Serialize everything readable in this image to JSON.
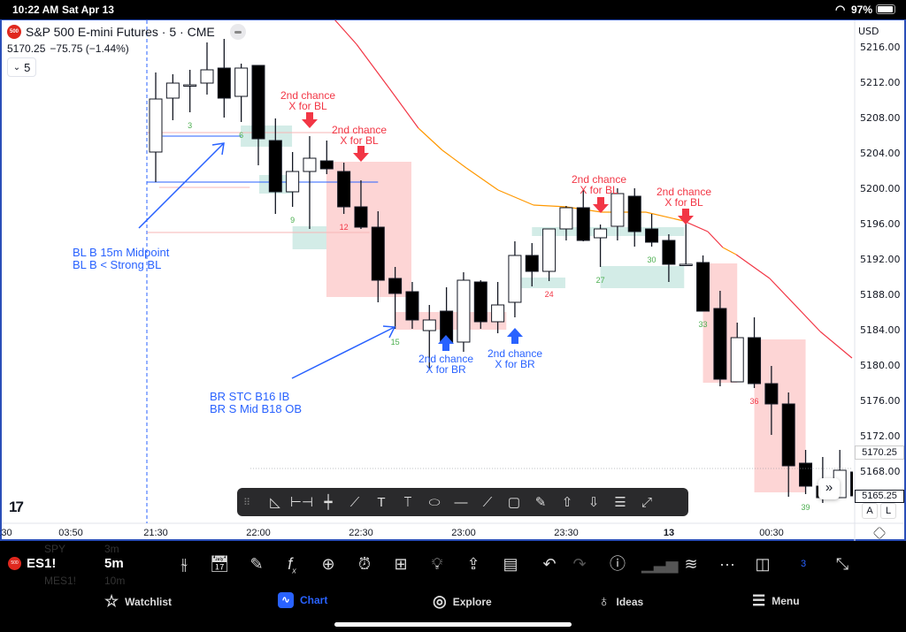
{
  "status_bar": {
    "time": "10:22 AM",
    "date": "Sat Apr 13",
    "battery": "97%"
  },
  "chart_header": {
    "symbol_badge": "500",
    "title": "S&P 500 E-mini Futures · 5 · CME",
    "last_price": "5170.25",
    "change": "−75.75 (−1.44%)",
    "indicator_toggle": "5"
  },
  "price_axis": {
    "currency": "USD",
    "ticks": [
      "5216.00",
      "5212.00",
      "5208.00",
      "5204.00",
      "5200.00",
      "5196.00",
      "5192.00",
      "5188.00",
      "5184.00",
      "5180.00",
      "5176.00",
      "5172.00",
      "5168.00"
    ],
    "tag_upper": "5170.25",
    "tag_lower": "5165.25"
  },
  "time_axis": {
    "ticks": [
      ":30",
      "03:50",
      "21:30",
      "22:00",
      "22:30",
      "23:00",
      "23:30",
      "13",
      "00:30"
    ]
  },
  "chart_data": {
    "type": "candlestick",
    "title": "S&P 500 E-mini Futures · 5 · CME",
    "ylim": [
      5164,
      5218
    ],
    "candles_ohlc": [
      [
        5204.2,
        5213.2,
        5200.8,
        5210.2
      ],
      [
        5210.3,
        5213.0,
        5207.8,
        5212.0
      ],
      [
        5211.8,
        5213.5,
        5208.7,
        5211.8
      ],
      [
        5212.0,
        5216.6,
        5210.7,
        5213.5
      ],
      [
        5213.7,
        5217.0,
        5208.1,
        5210.3
      ],
      [
        5210.5,
        5214.2,
        5207.6,
        5213.7
      ],
      [
        5214.0,
        5214.0,
        5202.7,
        5205.7
      ],
      [
        5205.5,
        5208.0,
        5197.2,
        5199.7
      ],
      [
        5199.7,
        5204.2,
        5198.0,
        5202.0
      ],
      [
        5202.0,
        5206.0,
        5195.5,
        5203.5
      ],
      [
        5203.2,
        5205.5,
        5201.7,
        5202.3
      ],
      [
        5202.0,
        5203.0,
        5197.2,
        5198.0
      ],
      [
        5198.0,
        5201.0,
        5195.5,
        5195.7
      ],
      [
        5195.7,
        5197.5,
        5187.2,
        5189.7
      ],
      [
        5189.9,
        5191.2,
        5184.2,
        5188.2
      ],
      [
        5188.4,
        5189.5,
        5184.2,
        5185.2
      ],
      [
        5184.0,
        5186.9,
        5179.7,
        5185.2
      ],
      [
        5186.2,
        5188.9,
        5181.7,
        5182.6
      ],
      [
        5182.7,
        5190.6,
        5181.6,
        5189.7
      ],
      [
        5189.5,
        5189.7,
        5184.2,
        5185.0
      ],
      [
        5185.0,
        5189.5,
        5183.7,
        5186.9
      ],
      [
        5187.2,
        5194.1,
        5185.5,
        5192.5
      ],
      [
        5192.5,
        5193.9,
        5189.0,
        5190.7
      ],
      [
        5190.7,
        5195.5,
        5189.6,
        5195.5
      ],
      [
        5195.5,
        5198.1,
        5194.2,
        5197.9
      ],
      [
        5197.9,
        5199.9,
        5194.1,
        5194.2
      ],
      [
        5194.5,
        5196.0,
        5191.2,
        5195.5
      ],
      [
        5195.8,
        5200.1,
        5194.2,
        5199.5
      ],
      [
        5199.2,
        5200.1,
        5193.5,
        5195.2
      ],
      [
        5195.5,
        5197.2,
        5193.5,
        5194.0
      ],
      [
        5194.2,
        5194.9,
        5189.5,
        5191.5
      ],
      [
        5191.5,
        5196.1,
        5191.4,
        5191.5
      ],
      [
        5191.7,
        5192.5,
        5186.2,
        5186.2
      ],
      [
        5186.5,
        5188.5,
        5177.7,
        5178.5
      ],
      [
        5178.2,
        5184.9,
        5178.2,
        5183.2
      ],
      [
        5183.2,
        5185.5,
        5177.5,
        5178.0
      ],
      [
        5178.0,
        5180.0,
        5172.2,
        5175.7
      ],
      [
        5175.7,
        5177.0,
        5165.2,
        5168.7
      ],
      [
        5169.0,
        5170.5,
        5165.5,
        5166.4
      ],
      [
        5166.4,
        5169.7,
        5164.5,
        5165.1
      ],
      [
        5165.1,
        5170.5,
        5165.1,
        5168.2
      ],
      [
        5168.0,
        5168.2,
        5164.8,
        5165.3
      ]
    ],
    "moving_average": [
      {
        "bar": 11.45,
        "price": 5219.2,
        "color": "#f23645"
      },
      {
        "bar": 12.74,
        "price": 5216.4,
        "color": "#f23645"
      },
      {
        "bar": 14.66,
        "price": 5211.4,
        "color": "#f23645"
      },
      {
        "bar": 16.36,
        "price": 5206.9,
        "color": "#ff9800"
      },
      {
        "bar": 17.76,
        "price": 5204.4,
        "color": "#ff9800"
      },
      {
        "bar": 19.16,
        "price": 5202.4,
        "color": "#ff9800"
      },
      {
        "bar": 21.02,
        "price": 5199.9,
        "color": "#ff9800"
      },
      {
        "bar": 23.09,
        "price": 5198.2,
        "color": "#ff9800"
      },
      {
        "bar": 25.0,
        "price": 5198.0,
        "color": "#ff9800"
      },
      {
        "bar": 27.07,
        "price": 5197.4,
        "color": "#ff9800"
      },
      {
        "bar": 29.66,
        "price": 5197.4,
        "color": "#ff9800"
      },
      {
        "bar": 31.88,
        "price": 5196.4,
        "color": "#f23645"
      },
      {
        "bar": 33.28,
        "price": 5195.2,
        "color": "#f23645"
      },
      {
        "bar": 34.16,
        "price": 5193.4,
        "color": "#ff9800"
      },
      {
        "bar": 34.94,
        "price": 5192.6,
        "color": "#f23645"
      },
      {
        "bar": 36.9,
        "price": 5189.9,
        "color": "#f23645"
      },
      {
        "bar": 39.85,
        "price": 5183.9,
        "color": "#f23645"
      },
      {
        "bar": 41.71,
        "price": 5180.9,
        "color": "#ff9800"
      }
    ],
    "zones": [
      {
        "kind": "bull",
        "bar_from": 5.97,
        "bar_to": 8.97,
        "price_top": 5207.2,
        "price_bottom": 5204.8
      },
      {
        "kind": "bull",
        "bar_from": 7.05,
        "bar_to": 8.97,
        "price_top": 5201.6,
        "price_bottom": 5199.5
      },
      {
        "kind": "bull",
        "bar_from": 9.0,
        "bar_to": 11.0,
        "price_top": 5195.8,
        "price_bottom": 5193.2
      },
      {
        "kind": "bull",
        "bar_from": 22.4,
        "bar_to": 24.95,
        "price_top": 5190.0,
        "price_bottom": 5188.8
      },
      {
        "kind": "bull",
        "bar_from": 23.0,
        "bar_to": 31.9,
        "price_top": 5195.7,
        "price_bottom": 5194.7
      },
      {
        "kind": "bull",
        "bar_from": 27.0,
        "bar_to": 31.9,
        "price_top": 5191.3,
        "price_bottom": 5188.8
      },
      {
        "kind": "bear",
        "bar_from": 10.98,
        "bar_to": 15.95,
        "price_top": 5203.1,
        "price_bottom": 5187.8
      },
      {
        "kind": "bear",
        "bar_from": 15.0,
        "bar_to": 21.5,
        "price_top": 5186.1,
        "price_bottom": 5184.1
      },
      {
        "kind": "bear",
        "bar_from": 33.0,
        "bar_to": 35.0,
        "price_top": 5191.6,
        "price_bottom": 5178.1
      },
      {
        "kind": "bear",
        "bar_from": 36.0,
        "bar_to": 39.0,
        "price_top": 5183.0,
        "price_bottom": 5165.7
      }
    ],
    "levels": [
      {
        "price": 5206.0,
        "bar_from": 1.4,
        "bar_to": 6.0,
        "color": "#2962ff"
      },
      {
        "price": 5200.8,
        "bar_from": 0.5,
        "bar_to": 14.0,
        "color": "#2962ff"
      },
      {
        "price": 5206.4,
        "bar_from": 0.5,
        "bar_to": 14.0,
        "color": "#f7b6b6"
      },
      {
        "price": 5195.1,
        "bar_from": 0.5,
        "bar_to": 13.5,
        "color": "#f7b6b6"
      },
      {
        "price": 5200.2,
        "bar_from": 1.2,
        "bar_to": 6.5,
        "color": "#f7b6b6"
      }
    ],
    "bar_numbers": [
      {
        "bar": 3,
        "label": "3",
        "color": "#4caf50"
      },
      {
        "bar": 6,
        "label": "6",
        "color": "#4caf50"
      },
      {
        "bar": 9,
        "label": "9",
        "color": "#4caf50"
      },
      {
        "bar": 12,
        "label": "12",
        "color": "#f23645"
      },
      {
        "bar": 15,
        "label": "15",
        "color": "#4caf50"
      },
      {
        "bar": 24,
        "label": "24",
        "color": "#f23645"
      },
      {
        "bar": 27,
        "label": "27",
        "color": "#4caf50"
      },
      {
        "bar": 30,
        "label": "30",
        "color": "#4caf50"
      },
      {
        "bar": 33,
        "label": "33",
        "color": "#4caf50"
      },
      {
        "bar": 36,
        "label": "36",
        "color": "#f23645"
      },
      {
        "bar": 39,
        "label": "39",
        "color": "#4caf50"
      }
    ]
  },
  "annotations": {
    "bl_second_chance_1": [
      "2nd chance",
      "X for BL"
    ],
    "bl_second_chance_2": [
      "2nd chance",
      "X for BL"
    ],
    "bl_second_chance_3": [
      "2nd chance",
      "X for BL"
    ],
    "bl_second_chance_4": [
      "2nd chance",
      "X for BL"
    ],
    "br_second_chance_1": [
      "2nd chance",
      "X for BR"
    ],
    "br_second_chance_2": [
      "2nd chance",
      "X for BR"
    ],
    "note_bl": [
      "BL B 15m Midpoint",
      "BL B < Strong BL"
    ],
    "note_br": [
      "BR STC B16 IB",
      "BR S Mid B18 OB"
    ]
  },
  "chart_buttons": {
    "auto": "A",
    "log": "L",
    "scroll_right": "»"
  },
  "bottom_toolbar": {
    "symbol": "ES1!",
    "interval": "5m",
    "watchlist_peek": [
      {
        "symbol": "SPY",
        "interval": "3m"
      },
      {
        "symbol": "MES1!",
        "interval": "10m"
      }
    ],
    "layout_count": "3"
  },
  "tab_bar": {
    "watchlist": "Watchlist",
    "chart": "Chart",
    "explore": "Explore",
    "ideas": "Ideas",
    "menu": "Menu",
    "active_color": "#2962ff"
  }
}
